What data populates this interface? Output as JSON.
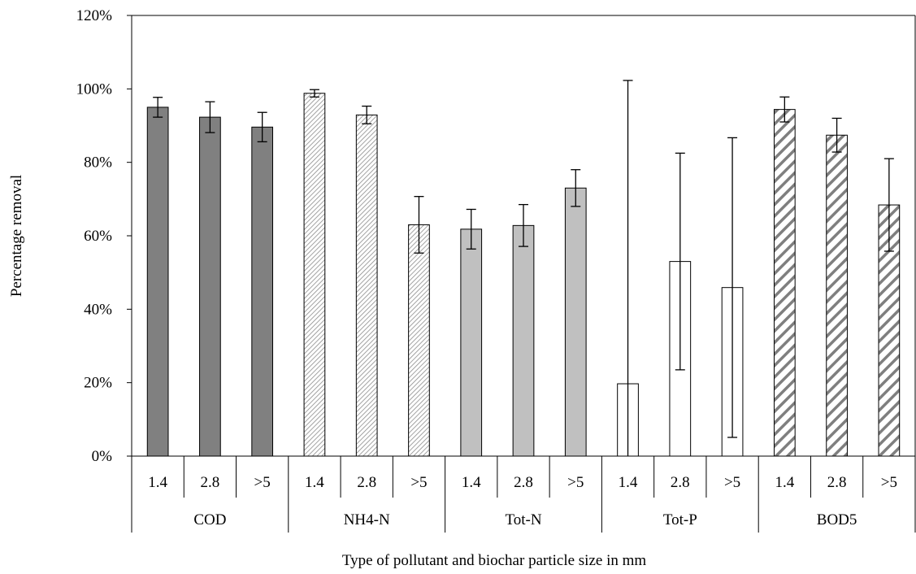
{
  "chart_data": {
    "type": "bar",
    "title": "",
    "xlabel": "Type of pollutant and biochar particle size in mm",
    "ylabel": "Percentage removal",
    "ylim": [
      0,
      1.2
    ],
    "y_ticks": [
      "0%",
      "20%",
      "40%",
      "60%",
      "80%",
      "100%",
      "120%"
    ],
    "y_tick_values": [
      0,
      0.2,
      0.4,
      0.6,
      0.8,
      1.0,
      1.2
    ],
    "grid": false,
    "legend": "none",
    "groups": [
      {
        "name": "COD",
        "pattern": "solid-dark",
        "color": "#808080",
        "categories": [
          "1.4",
          "2.8",
          ">5"
        ],
        "values": [
          0.95,
          0.923,
          0.896
        ],
        "errors": [
          0.027,
          0.042,
          0.04
        ]
      },
      {
        "name": "NH4-N",
        "pattern": "fine-hatch",
        "color": "#bdbdbd",
        "categories": [
          "1.4",
          "2.8",
          ">5"
        ],
        "values": [
          0.988,
          0.929,
          0.63
        ],
        "errors": [
          0.01,
          0.024,
          0.077
        ]
      },
      {
        "name": "Tot-N",
        "pattern": "solid-light",
        "color": "#c0c0c0",
        "categories": [
          "1.4",
          "2.8",
          ">5"
        ],
        "values": [
          0.618,
          0.628,
          0.73
        ],
        "errors": [
          0.054,
          0.057,
          0.05
        ]
      },
      {
        "name": "Tot-P",
        "pattern": "white",
        "color": "#ffffff",
        "categories": [
          "1.4",
          "2.8",
          ">5"
        ],
        "values": [
          0.197,
          0.53,
          0.459
        ],
        "errors": [
          0.826,
          0.295,
          0.408
        ]
      },
      {
        "name": "BOD5",
        "pattern": "wide-hatch",
        "color": "#808080",
        "categories": [
          "1.4",
          "2.8",
          ">5"
        ],
        "values": [
          0.944,
          0.874,
          0.684
        ],
        "errors": [
          0.034,
          0.046,
          0.126
        ]
      }
    ]
  }
}
